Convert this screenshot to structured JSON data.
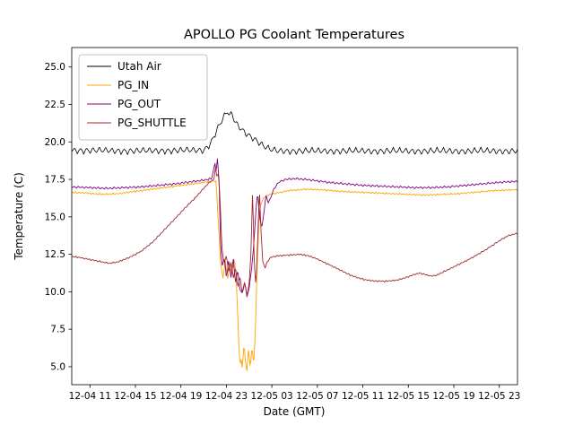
{
  "chart_data": {
    "type": "line",
    "title": "APOLLO PG Coolant Temperatures",
    "xlabel": "Date (GMT)",
    "ylabel": "Temperature (C)",
    "x_unit": "hours since 12-04 00:00 GMT",
    "xlim": [
      9.4,
      48.6
    ],
    "ylim": [
      3.8,
      26.3
    ],
    "grid": false,
    "legend_position": "upper left",
    "xticks": [
      11,
      15,
      19,
      23,
      27,
      31,
      35,
      39,
      43,
      47
    ],
    "xtick_labels": [
      "12-04 11",
      "12-04 15",
      "12-04 19",
      "12-04 23",
      "12-05 03",
      "12-05 07",
      "12-05 11",
      "12-05 15",
      "12-05 19",
      "12-05 23"
    ],
    "yticks": [
      5.0,
      7.5,
      10.0,
      12.5,
      15.0,
      17.5,
      20.0,
      22.5,
      25.0
    ],
    "ytick_labels": [
      "5.0",
      "7.5",
      "10.0",
      "12.5",
      "15.0",
      "17.5",
      "20.0",
      "22.5",
      "25.0"
    ],
    "series": [
      {
        "name": "Utah Air",
        "color": "#000000",
        "line_width": 0.8,
        "noise": {
          "amplitude": 0.27,
          "period": 0.55
        },
        "points": [
          [
            9.4,
            19.45
          ],
          [
            15,
            19.4
          ],
          [
            21,
            19.45
          ],
          [
            21.6,
            19.9
          ],
          [
            22.1,
            20.7
          ],
          [
            22.5,
            21.3
          ],
          [
            22.9,
            21.8
          ],
          [
            23.1,
            22.05
          ],
          [
            23.3,
            21.7
          ],
          [
            23.5,
            21.9
          ],
          [
            23.7,
            21.4
          ],
          [
            24.0,
            21.1
          ],
          [
            24.4,
            20.8
          ],
          [
            24.8,
            20.55
          ],
          [
            25.3,
            20.3
          ],
          [
            25.8,
            20.0
          ],
          [
            26.3,
            19.7
          ],
          [
            26.8,
            19.5
          ],
          [
            27.5,
            19.4
          ],
          [
            48.6,
            19.4
          ]
        ]
      },
      {
        "name": "PG_IN",
        "color": "#FFA500",
        "line_width": 0.9,
        "noise": {
          "amplitude": 0.07,
          "period": 0.3
        },
        "points": [
          [
            9.4,
            16.62
          ],
          [
            10.5,
            16.6
          ],
          [
            12,
            16.5
          ],
          [
            13.5,
            16.55
          ],
          [
            15,
            16.7
          ],
          [
            16.5,
            16.85
          ],
          [
            18,
            17.0
          ],
          [
            19.5,
            17.15
          ],
          [
            21,
            17.3
          ],
          [
            21.8,
            17.4
          ],
          [
            22.1,
            17.35
          ],
          [
            22.3,
            14.5
          ],
          [
            22.5,
            11.8
          ],
          [
            22.7,
            10.9
          ],
          [
            22.9,
            12.1
          ],
          [
            23.1,
            10.8
          ],
          [
            23.3,
            11.9
          ],
          [
            23.5,
            11.1
          ],
          [
            23.7,
            12.3
          ],
          [
            23.85,
            11.0
          ],
          [
            24.0,
            8.5
          ],
          [
            24.1,
            6.3
          ],
          [
            24.2,
            5.0
          ],
          [
            24.3,
            5.6
          ],
          [
            24.4,
            4.8
          ],
          [
            24.55,
            6.6
          ],
          [
            24.7,
            5.1
          ],
          [
            24.8,
            4.7
          ],
          [
            24.95,
            6.2
          ],
          [
            25.1,
            4.9
          ],
          [
            25.25,
            6.4
          ],
          [
            25.4,
            5.0
          ],
          [
            25.55,
            7.5
          ],
          [
            25.7,
            11.5
          ],
          [
            25.85,
            14.5
          ],
          [
            26.0,
            15.8
          ],
          [
            26.3,
            16.3
          ],
          [
            26.8,
            16.5
          ],
          [
            27.5,
            16.6
          ],
          [
            28.5,
            16.75
          ],
          [
            30,
            16.85
          ],
          [
            31.5,
            16.8
          ],
          [
            33,
            16.7
          ],
          [
            34.5,
            16.65
          ],
          [
            36,
            16.6
          ],
          [
            37.5,
            16.55
          ],
          [
            39,
            16.5
          ],
          [
            40.5,
            16.45
          ],
          [
            42,
            16.5
          ],
          [
            43.5,
            16.55
          ],
          [
            45,
            16.65
          ],
          [
            46.5,
            16.75
          ],
          [
            48,
            16.8
          ],
          [
            48.6,
            16.8
          ]
        ]
      },
      {
        "name": "PG_OUT",
        "color": "#800080",
        "line_width": 0.9,
        "noise": {
          "amplitude": 0.09,
          "period": 0.35
        },
        "points": [
          [
            9.4,
            17.0
          ],
          [
            11,
            16.95
          ],
          [
            12.5,
            16.9
          ],
          [
            14,
            16.95
          ],
          [
            15.5,
            17.0
          ],
          [
            17,
            17.1
          ],
          [
            18.5,
            17.2
          ],
          [
            20,
            17.35
          ],
          [
            21,
            17.45
          ],
          [
            21.7,
            17.55
          ],
          [
            22.0,
            18.6
          ],
          [
            22.1,
            17.9
          ],
          [
            22.2,
            18.9
          ],
          [
            22.35,
            17.5
          ],
          [
            22.5,
            12.8
          ],
          [
            22.65,
            11.6
          ],
          [
            22.8,
            12.4
          ],
          [
            23.0,
            10.9
          ],
          [
            23.2,
            12.1
          ],
          [
            23.4,
            11.0
          ],
          [
            23.6,
            12.2
          ],
          [
            23.8,
            10.6
          ],
          [
            24.0,
            11.4
          ],
          [
            24.2,
            10.1
          ],
          [
            24.4,
            9.9
          ],
          [
            24.6,
            10.6
          ],
          [
            24.8,
            9.7
          ],
          [
            25.0,
            10.2
          ],
          [
            25.2,
            11.5
          ],
          [
            25.4,
            13.0
          ],
          [
            25.6,
            15.5
          ],
          [
            25.75,
            16.6
          ],
          [
            25.9,
            15.2
          ],
          [
            26.1,
            14.2
          ],
          [
            26.3,
            15.3
          ],
          [
            26.5,
            16.5
          ],
          [
            26.7,
            15.9
          ],
          [
            26.9,
            16.3
          ],
          [
            27.2,
            16.9
          ],
          [
            27.6,
            17.3
          ],
          [
            28.2,
            17.5
          ],
          [
            29,
            17.55
          ],
          [
            30,
            17.5
          ],
          [
            31,
            17.4
          ],
          [
            32,
            17.3
          ],
          [
            33.5,
            17.2
          ],
          [
            35,
            17.1
          ],
          [
            36.5,
            17.05
          ],
          [
            38,
            17.0
          ],
          [
            39.5,
            16.95
          ],
          [
            41,
            16.95
          ],
          [
            42.5,
            17.0
          ],
          [
            44,
            17.1
          ],
          [
            45.5,
            17.2
          ],
          [
            47,
            17.3
          ],
          [
            48,
            17.35
          ],
          [
            48.6,
            17.35
          ]
        ]
      },
      {
        "name": "PG_SHUTTLE",
        "color": "#A0282C",
        "line_width": 0.9,
        "noise": {
          "amplitude": 0.06,
          "period": 0.3
        },
        "points": [
          [
            9.4,
            12.35
          ],
          [
            10,
            12.3
          ],
          [
            11,
            12.15
          ],
          [
            12,
            12.0
          ],
          [
            12.7,
            11.9
          ],
          [
            13.5,
            12.0
          ],
          [
            14.5,
            12.3
          ],
          [
            15.5,
            12.7
          ],
          [
            16.5,
            13.3
          ],
          [
            17.5,
            14.1
          ],
          [
            18.5,
            14.9
          ],
          [
            19.5,
            15.7
          ],
          [
            20.3,
            16.3
          ],
          [
            21.0,
            16.9
          ],
          [
            21.5,
            17.3
          ],
          [
            21.9,
            17.5
          ],
          [
            22.05,
            18.4
          ],
          [
            22.15,
            17.7
          ],
          [
            22.3,
            17.9
          ],
          [
            22.45,
            16.0
          ],
          [
            22.6,
            12.9
          ],
          [
            22.8,
            11.9
          ],
          [
            23.0,
            12.4
          ],
          [
            23.2,
            11.3
          ],
          [
            23.4,
            12.0
          ],
          [
            23.6,
            10.9
          ],
          [
            23.8,
            11.6
          ],
          [
            24.0,
            10.3
          ],
          [
            24.2,
            11.0
          ],
          [
            24.4,
            9.9
          ],
          [
            24.6,
            10.7
          ],
          [
            24.8,
            9.7
          ],
          [
            25.0,
            10.5
          ],
          [
            25.15,
            12.5
          ],
          [
            25.3,
            16.7
          ],
          [
            25.45,
            12.0
          ],
          [
            25.6,
            10.3
          ],
          [
            25.75,
            13.5
          ],
          [
            25.9,
            16.8
          ],
          [
            26.05,
            14.0
          ],
          [
            26.2,
            12.0
          ],
          [
            26.4,
            11.6
          ],
          [
            26.6,
            12.0
          ],
          [
            26.9,
            12.3
          ],
          [
            27.5,
            12.4
          ],
          [
            28.5,
            12.45
          ],
          [
            29.5,
            12.5
          ],
          [
            30.2,
            12.4
          ],
          [
            30.8,
            12.25
          ],
          [
            31.5,
            12.0
          ],
          [
            32.2,
            11.75
          ],
          [
            33,
            11.45
          ],
          [
            33.8,
            11.15
          ],
          [
            34.5,
            10.95
          ],
          [
            35.2,
            10.8
          ],
          [
            36,
            10.72
          ],
          [
            37,
            10.7
          ],
          [
            38,
            10.78
          ],
          [
            38.8,
            10.95
          ],
          [
            39.5,
            11.15
          ],
          [
            40,
            11.25
          ],
          [
            40.5,
            11.15
          ],
          [
            41,
            11.05
          ],
          [
            41.5,
            11.1
          ],
          [
            42,
            11.3
          ],
          [
            42.7,
            11.55
          ],
          [
            43.5,
            11.85
          ],
          [
            44.3,
            12.15
          ],
          [
            45,
            12.45
          ],
          [
            45.8,
            12.8
          ],
          [
            46.5,
            13.15
          ],
          [
            47.2,
            13.5
          ],
          [
            47.8,
            13.75
          ],
          [
            48.3,
            13.85
          ],
          [
            48.6,
            13.9
          ]
        ]
      }
    ]
  }
}
